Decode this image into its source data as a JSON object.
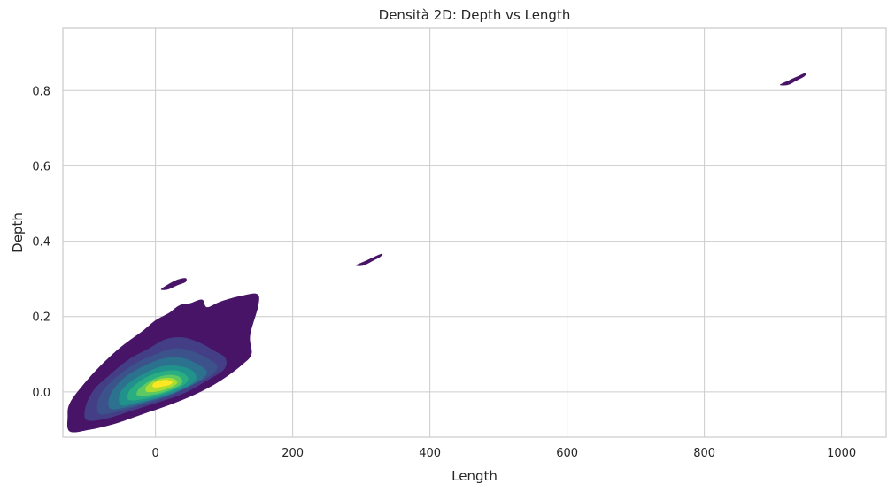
{
  "chart_data": {
    "type": "kde2d",
    "title": "Densità 2D: Depth vs Length",
    "xlabel": "Length",
    "ylabel": "Depth",
    "xlim": [
      -135,
      1065
    ],
    "ylim": [
      -0.12,
      0.965
    ],
    "x_ticks": [
      0,
      200,
      400,
      600,
      800,
      1000
    ],
    "x_tick_labels": [
      "0",
      "200",
      "400",
      "600",
      "800",
      "1000"
    ],
    "y_ticks": [
      0.0,
      0.2,
      0.4,
      0.6,
      0.8
    ],
    "y_tick_labels": [
      "0.0",
      "0.2",
      "0.4",
      "0.6",
      "0.8"
    ],
    "grid": true,
    "colormap": "viridis",
    "fill": true,
    "levels": [
      {
        "level": 1,
        "color": "#481467",
        "regions": [
          {
            "name": "main",
            "points": [
              [
                -125,
                -0.105
              ],
              [
                -95,
                -0.1
              ],
              [
                -60,
                -0.085
              ],
              [
                -20,
                -0.06
              ],
              [
                20,
                -0.035
              ],
              [
                60,
                -0.005
              ],
              [
                95,
                0.03
              ],
              [
                125,
                0.07
              ],
              [
                140,
                0.1
              ],
              [
                138,
                0.15
              ],
              [
                150,
                0.23
              ],
              [
                148,
                0.26
              ],
              [
                125,
                0.255
              ],
              [
                95,
                0.24
              ],
              [
                75,
                0.225
              ],
              [
                68,
                0.245
              ],
              [
                50,
                0.235
              ],
              [
                35,
                0.23
              ],
              [
                20,
                0.21
              ],
              [
                0,
                0.19
              ],
              [
                -20,
                0.16
              ],
              [
                -50,
                0.12
              ],
              [
                -80,
                0.07
              ],
              [
                -105,
                0.02
              ],
              [
                -125,
                -0.03
              ],
              [
                -128,
                -0.065
              ]
            ]
          },
          {
            "name": "blob-near-0.28",
            "points": [
              [
                8,
                0.272
              ],
              [
                18,
                0.285
              ],
              [
                32,
                0.298
              ],
              [
                44,
                0.302
              ],
              [
                44,
                0.292
              ],
              [
                32,
                0.283
              ],
              [
                18,
                0.272
              ]
            ]
          },
          {
            "name": "blob-near-0.35",
            "points": [
              [
                292,
                0.336
              ],
              [
                305,
                0.347
              ],
              [
                318,
                0.358
              ],
              [
                330,
                0.367
              ],
              [
                328,
                0.359
              ],
              [
                316,
                0.347
              ],
              [
                302,
                0.335
              ]
            ]
          },
          {
            "name": "blob-near-0.83",
            "points": [
              [
                910,
                0.815
              ],
              [
                922,
                0.826
              ],
              [
                935,
                0.837
              ],
              [
                948,
                0.847
              ],
              [
                946,
                0.838
              ],
              [
                934,
                0.826
              ],
              [
                922,
                0.815
              ]
            ]
          }
        ]
      },
      {
        "level": 2,
        "color": "#433e85",
        "regions": [
          {
            "name": "main",
            "points": [
              [
                -100,
                -0.075
              ],
              [
                -70,
                -0.07
              ],
              [
                -35,
                -0.05
              ],
              [
                0,
                -0.03
              ],
              [
                40,
                -0.005
              ],
              [
                75,
                0.03
              ],
              [
                100,
                0.06
              ],
              [
                102,
                0.09
              ],
              [
                85,
                0.11
              ],
              [
                65,
                0.13
              ],
              [
                40,
                0.145
              ],
              [
                15,
                0.14
              ],
              [
                -10,
                0.115
              ],
              [
                -40,
                0.085
              ],
              [
                -70,
                0.04
              ],
              [
                -90,
                0.005
              ],
              [
                -102,
                -0.04
              ]
            ]
          }
        ]
      },
      {
        "level": 3,
        "color": "#3b528b",
        "regions": [
          {
            "name": "main",
            "points": [
              [
                -80,
                -0.06
              ],
              [
                -50,
                -0.05
              ],
              [
                -20,
                -0.035
              ],
              [
                15,
                -0.015
              ],
              [
                50,
                0.015
              ],
              [
                82,
                0.045
              ],
              [
                90,
                0.07
              ],
              [
                75,
                0.09
              ],
              [
                50,
                0.11
              ],
              [
                25,
                0.115
              ],
              [
                0,
                0.1
              ],
              [
                -30,
                0.075
              ],
              [
                -60,
                0.035
              ],
              [
                -78,
                0.0
              ],
              [
                -85,
                -0.035
              ]
            ]
          }
        ]
      },
      {
        "level": 4,
        "color": "#2c728e",
        "regions": [
          {
            "name": "main",
            "points": [
              [
                -65,
                -0.045
              ],
              [
                -40,
                -0.04
              ],
              [
                -10,
                -0.025
              ],
              [
                25,
                -0.005
              ],
              [
                60,
                0.025
              ],
              [
                75,
                0.05
              ],
              [
                65,
                0.07
              ],
              [
                40,
                0.09
              ],
              [
                15,
                0.09
              ],
              [
                -10,
                0.075
              ],
              [
                -40,
                0.045
              ],
              [
                -60,
                0.01
              ],
              [
                -68,
                -0.02
              ]
            ]
          }
        ]
      },
      {
        "level": 5,
        "color": "#21918c",
        "regions": [
          {
            "name": "main",
            "points": [
              [
                -50,
                -0.035
              ],
              [
                -25,
                -0.028
              ],
              [
                5,
                -0.015
              ],
              [
                35,
                0.005
              ],
              [
                58,
                0.03
              ],
              [
                55,
                0.055
              ],
              [
                35,
                0.068
              ],
              [
                10,
                0.068
              ],
              [
                -15,
                0.05
              ],
              [
                -38,
                0.025
              ],
              [
                -52,
                -0.005
              ]
            ]
          }
        ]
      },
      {
        "level": 6,
        "color": "#28ae80",
        "regions": [
          {
            "name": "main",
            "points": [
              [
                -38,
                -0.022
              ],
              [
                -15,
                -0.018
              ],
              [
                12,
                -0.005
              ],
              [
                38,
                0.015
              ],
              [
                48,
                0.035
              ],
              [
                35,
                0.055
              ],
              [
                12,
                0.055
              ],
              [
                -12,
                0.04
              ],
              [
                -32,
                0.015
              ],
              [
                -40,
                -0.005
              ]
            ]
          }
        ]
      },
      {
        "level": 7,
        "color": "#5ec962",
        "regions": [
          {
            "name": "main",
            "points": [
              [
                -25,
                -0.01
              ],
              [
                -5,
                -0.008
              ],
              [
                18,
                0.003
              ],
              [
                38,
                0.022
              ],
              [
                35,
                0.04
              ],
              [
                18,
                0.045
              ],
              [
                -2,
                0.035
              ],
              [
                -20,
                0.015
              ],
              [
                -27,
                0.0
              ]
            ]
          }
        ]
      },
      {
        "level": 8,
        "color": "#addc30",
        "regions": [
          {
            "name": "main",
            "points": [
              [
                -12,
                0.0
              ],
              [
                5,
                0.002
              ],
              [
                22,
                0.012
              ],
              [
                32,
                0.025
              ],
              [
                25,
                0.036
              ],
              [
                10,
                0.036
              ],
              [
                -5,
                0.026
              ],
              [
                -14,
                0.012
              ]
            ]
          }
        ]
      },
      {
        "level": 9,
        "color": "#fde725",
        "regions": [
          {
            "name": "main",
            "points": [
              [
                -2,
                0.012
              ],
              [
                10,
                0.014
              ],
              [
                22,
                0.02
              ],
              [
                24,
                0.028
              ],
              [
                14,
                0.032
              ],
              [
                2,
                0.027
              ],
              [
                -4,
                0.02
              ]
            ]
          }
        ]
      }
    ]
  }
}
